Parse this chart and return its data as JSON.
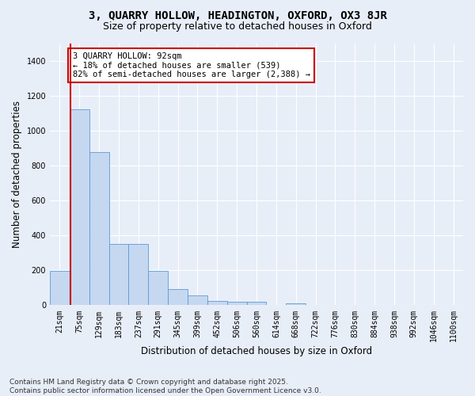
{
  "title": "3, QUARRY HOLLOW, HEADINGTON, OXFORD, OX3 8JR",
  "subtitle": "Size of property relative to detached houses in Oxford",
  "xlabel": "Distribution of detached houses by size in Oxford",
  "ylabel": "Number of detached properties",
  "categories": [
    "21sqm",
    "75sqm",
    "129sqm",
    "183sqm",
    "237sqm",
    "291sqm",
    "345sqm",
    "399sqm",
    "452sqm",
    "506sqm",
    "560sqm",
    "614sqm",
    "668sqm",
    "722sqm",
    "776sqm",
    "830sqm",
    "884sqm",
    "938sqm",
    "992sqm",
    "1046sqm",
    "1100sqm"
  ],
  "values": [
    195,
    1125,
    880,
    352,
    350,
    197,
    95,
    58,
    25,
    22,
    18,
    0,
    13,
    0,
    0,
    0,
    0,
    0,
    0,
    0,
    0
  ],
  "bar_color": "#c5d8f0",
  "bar_edge_color": "#5b9bd5",
  "vline_x": 0.55,
  "vline_color": "#cc0000",
  "annotation_text": "3 QUARRY HOLLOW: 92sqm\n← 18% of detached houses are smaller (539)\n82% of semi-detached houses are larger (2,388) →",
  "annotation_box_color": "#ffffff",
  "annotation_box_edge": "#cc0000",
  "ylim": [
    0,
    1500
  ],
  "yticks": [
    0,
    200,
    400,
    600,
    800,
    1000,
    1200,
    1400
  ],
  "background_color": "#e8eef8",
  "grid_color": "#ffffff",
  "footer": "Contains HM Land Registry data © Crown copyright and database right 2025.\nContains public sector information licensed under the Open Government Licence v3.0.",
  "title_fontsize": 10,
  "subtitle_fontsize": 9,
  "axis_label_fontsize": 8.5,
  "tick_fontsize": 7,
  "footer_fontsize": 6.5,
  "annot_fontsize": 7.5
}
